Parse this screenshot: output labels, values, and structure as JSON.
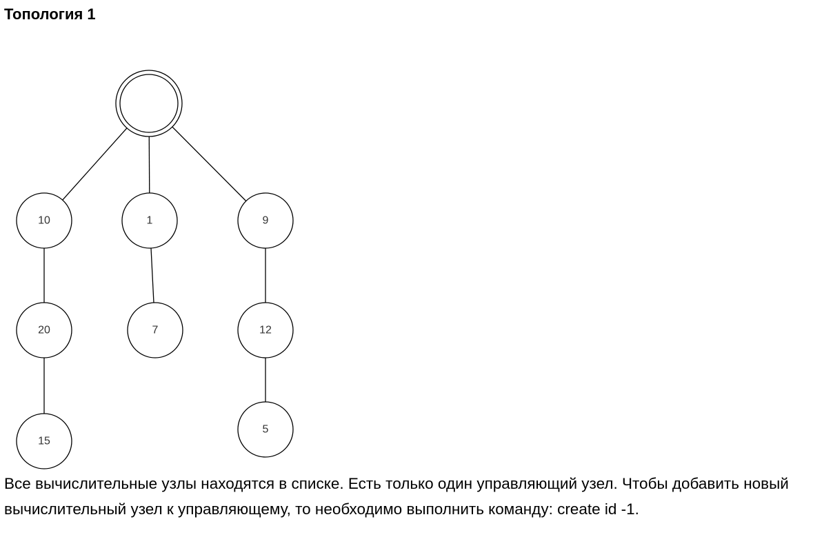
{
  "heading": "Топология 1",
  "diagram": {
    "root": {
      "id": "root",
      "label": ""
    },
    "nodes": [
      {
        "id": "n10",
        "label": "10"
      },
      {
        "id": "n1",
        "label": "1"
      },
      {
        "id": "n9",
        "label": "9"
      },
      {
        "id": "n20",
        "label": "20"
      },
      {
        "id": "n7",
        "label": "7"
      },
      {
        "id": "n12",
        "label": "12"
      },
      {
        "id": "n15",
        "label": "15"
      },
      {
        "id": "n5",
        "label": "5"
      }
    ],
    "edges": [
      [
        "root",
        "n10"
      ],
      [
        "root",
        "n1"
      ],
      [
        "root",
        "n9"
      ],
      [
        "n10",
        "n20"
      ],
      [
        "n20",
        "n15"
      ],
      [
        "n1",
        "n7"
      ],
      [
        "n9",
        "n12"
      ],
      [
        "n12",
        "n5"
      ]
    ]
  },
  "description": "Все вычислительные узлы находятся в списке. Есть только один управляющий узел. Чтобы добавить новый вычислительный узел к управляющему, то необходимо выполнить команду: create id -1."
}
